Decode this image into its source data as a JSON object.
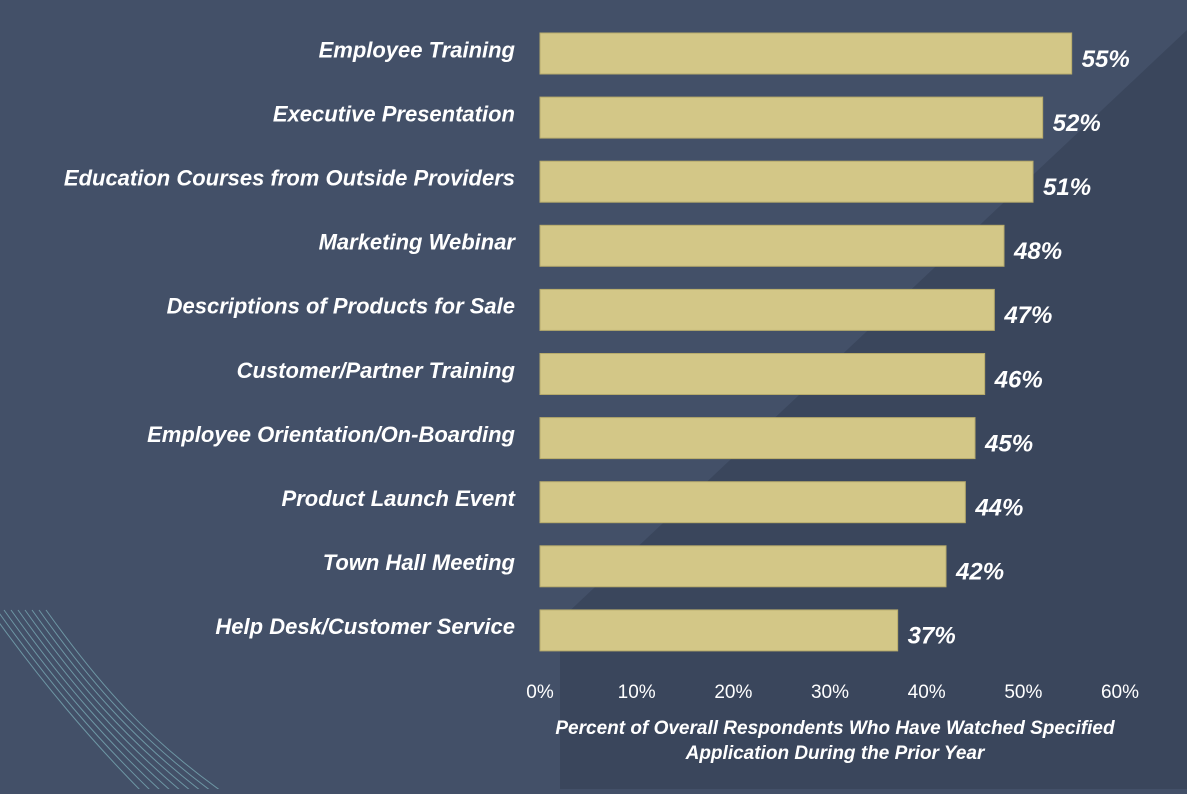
{
  "chart_data": {
    "type": "bar",
    "orientation": "horizontal",
    "categories": [
      "Employee Training",
      "Executive Presentation",
      "Education Courses from Outside Providers",
      "Marketing Webinar",
      "Descriptions of Products for Sale",
      "Customer/Partner Training",
      "Employee Orientation/On-Boarding",
      "Product Launch Event",
      "Town Hall Meeting",
      "Help Desk/Customer Service"
    ],
    "values": [
      55,
      52,
      51,
      48,
      47,
      46,
      45,
      44,
      42,
      37
    ],
    "value_labels": [
      "55%",
      "52%",
      "51%",
      "48%",
      "47%",
      "46%",
      "45%",
      "44%",
      "42%",
      "37%"
    ],
    "xlim": [
      0,
      60
    ],
    "xticks": [
      0,
      10,
      20,
      30,
      40,
      50,
      60
    ],
    "xtick_labels": [
      "0%",
      "10%",
      "20%",
      "30%",
      "40%",
      "50%",
      "60%"
    ],
    "xlabel_lines": [
      "Percent of Overall Respondents Who Have Watched Specified",
      "Application During the Prior Year"
    ],
    "grid": false,
    "legend": "none"
  },
  "colors": {
    "background": "#435068",
    "background_shade": "#3a465c",
    "bar": "#d3c787",
    "bar_border": "#b7ab6c",
    "text": "#ffffff",
    "decor_lines": "#8fd0d6"
  }
}
